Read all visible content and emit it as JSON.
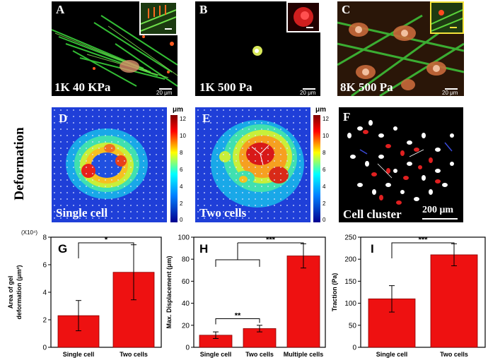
{
  "row_title": "Deformation",
  "micrographs": [
    {
      "label": "A",
      "condition": "1K 40 KPa",
      "scale": "20 μm"
    },
    {
      "label": "B",
      "condition": "1K 500 Pa",
      "scale": "20 μm"
    },
    {
      "label": "C",
      "condition": "8K 500 Pa",
      "scale": "20 μm"
    }
  ],
  "deformation_maps": [
    {
      "label": "D",
      "caption": "Single cell",
      "unit": "μm",
      "ticks": [
        "12",
        "10",
        "8",
        "6",
        "4",
        "2",
        "0"
      ]
    },
    {
      "label": "E",
      "caption": "Two cells",
      "unit": "μm",
      "ticks": [
        "12",
        "10",
        "8",
        "6",
        "4",
        "2",
        "0"
      ]
    }
  ],
  "cluster": {
    "label": "F",
    "caption": "Cell cluster",
    "scale": "200 μm"
  },
  "colors": {
    "bar": "#ee1111",
    "bar_edge": "#880000"
  },
  "chart_data": [
    {
      "type": "bar",
      "label": "G",
      "categories": [
        "Single cell",
        "Two cells"
      ],
      "values": [
        2.3,
        5.45
      ],
      "errors": [
        1.1,
        2.0
      ],
      "ylabel_lines": [
        "Area of gel",
        "deformation (μm²)"
      ],
      "y_multiplier": "(X10⁴)",
      "ylim": [
        0,
        8
      ],
      "yticks": [
        0,
        2,
        4,
        6,
        8
      ],
      "significance": [
        {
          "from": 0,
          "to": 1,
          "text": "*"
        }
      ]
    },
    {
      "type": "bar",
      "label": "H",
      "categories": [
        "Single cell",
        "Two cells",
        "Multiple cells"
      ],
      "values": [
        11,
        17,
        83
      ],
      "errors": [
        3,
        3,
        11
      ],
      "ylabel_lines": [
        "Max. Displacement (μm)"
      ],
      "ylim": [
        0,
        100
      ],
      "yticks": [
        0,
        20,
        40,
        60,
        80,
        100
      ],
      "significance": [
        {
          "from": 0,
          "to": 1,
          "text": "**"
        },
        {
          "from": "0-1",
          "to": 2,
          "text": "***"
        }
      ]
    },
    {
      "type": "bar",
      "label": "I",
      "categories": [
        "Single cell",
        "Two cells"
      ],
      "values": [
        110,
        210
      ],
      "errors": [
        30,
        25
      ],
      "ylabel_lines": [
        "Traction (Pa)"
      ],
      "ylim": [
        0,
        250
      ],
      "yticks": [
        0,
        50,
        100,
        150,
        200,
        250
      ],
      "significance": [
        {
          "from": 0,
          "to": 1,
          "text": "***"
        }
      ]
    }
  ]
}
